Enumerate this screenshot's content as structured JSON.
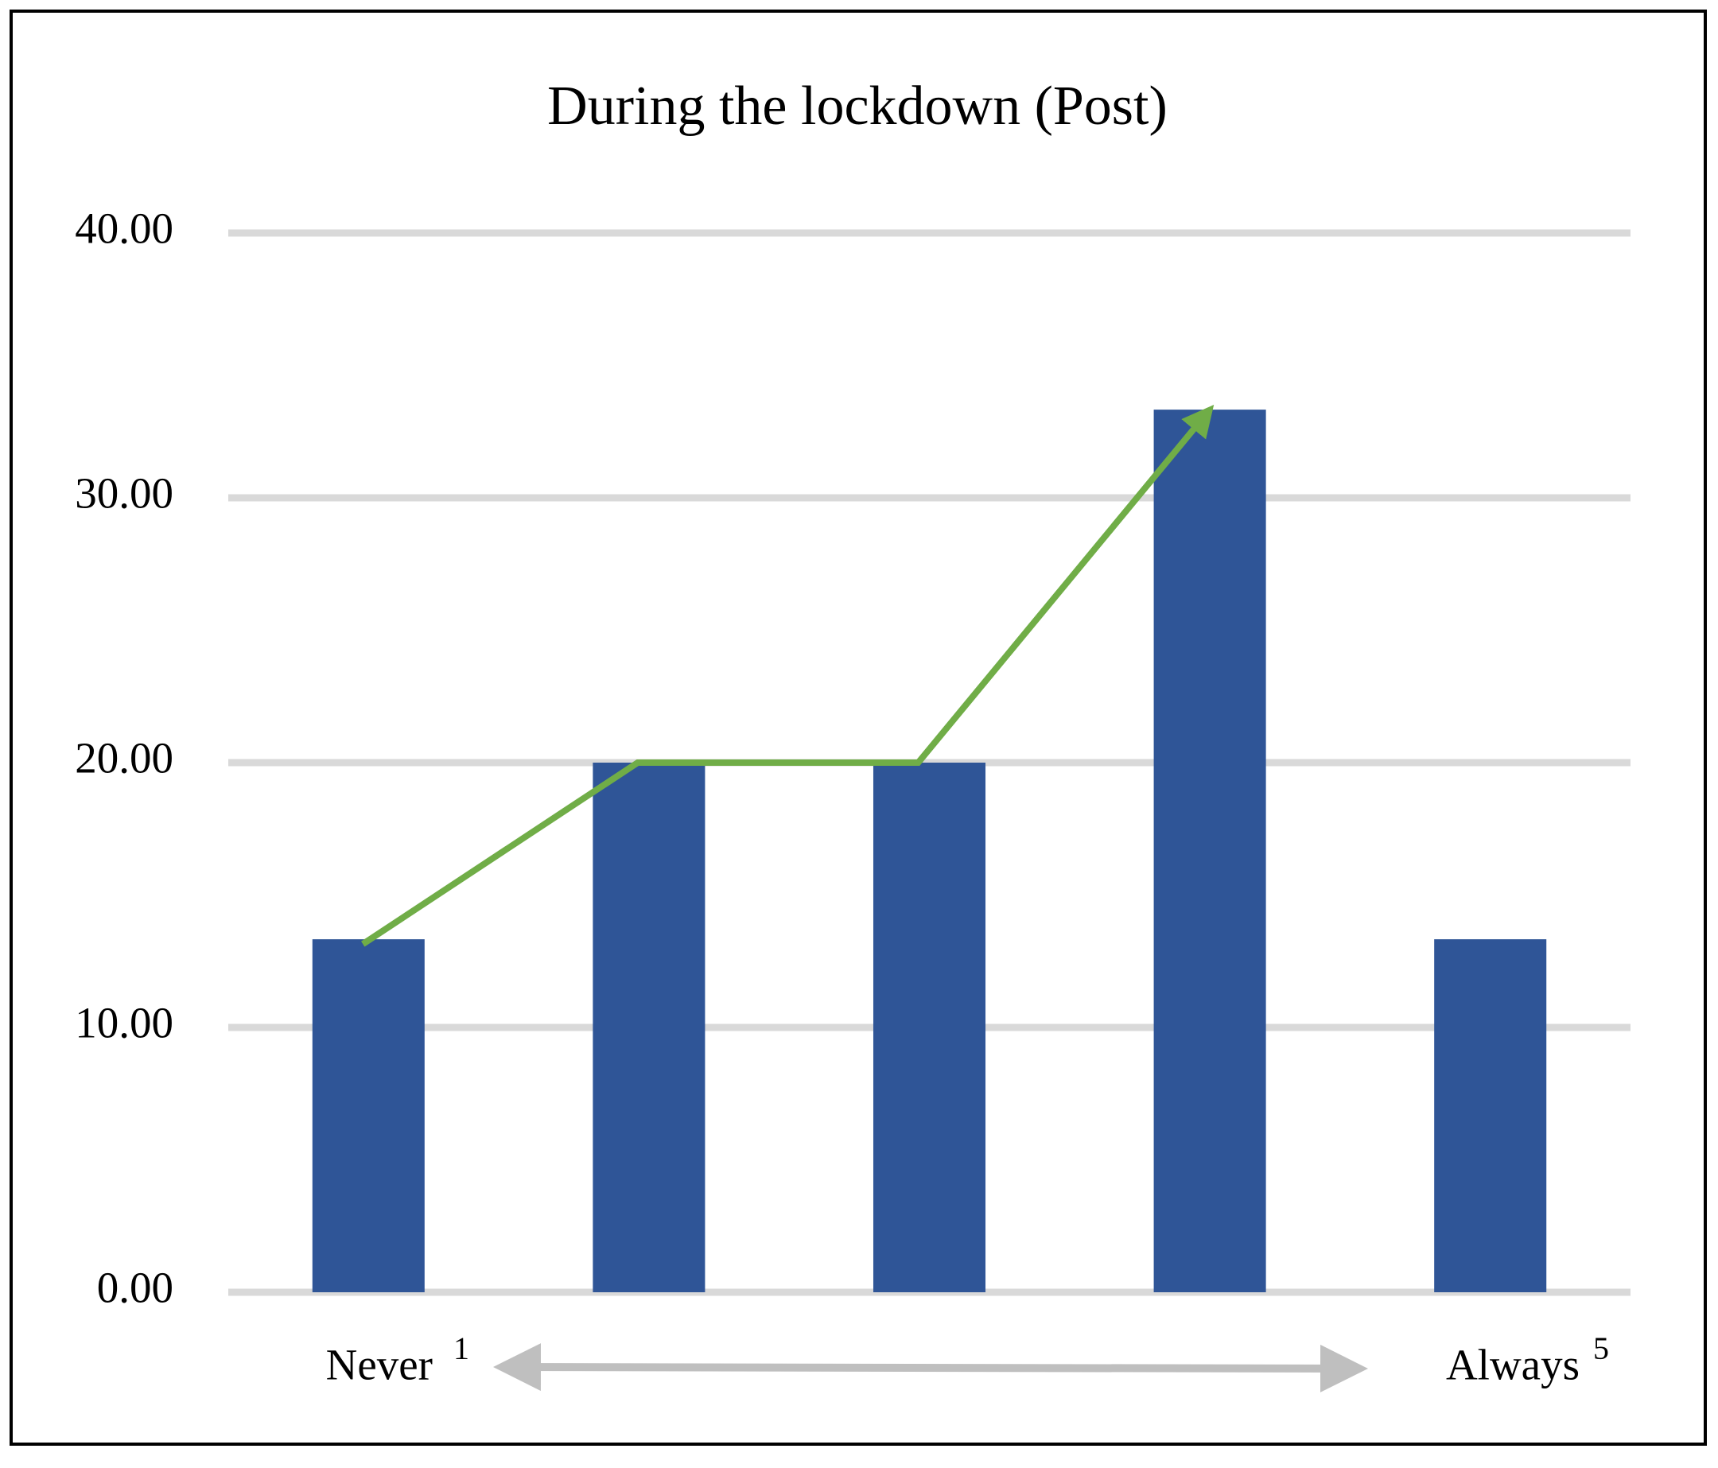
{
  "chart_data": {
    "type": "bar",
    "title": "During the lockdown (Post)",
    "categories": [
      "1",
      null,
      null,
      null,
      "5"
    ],
    "scale_ends": [
      "Never",
      "Always"
    ],
    "values": [
      13.33,
      20,
      20,
      33.33,
      13.33
    ],
    "color": "#2f5597",
    "trend_arrow": {
      "color": "#70ad47",
      "values": [
        13.33,
        20,
        20,
        33.33,
        null
      ]
    },
    "ylim": [
      0,
      40
    ],
    "yticks": [
      {
        "value": 0,
        "label": "0.00"
      },
      {
        "value": 10,
        "label": "10.00"
      },
      {
        "value": 20,
        "label": "20.00"
      },
      {
        "value": 30,
        "label": "30.00"
      },
      {
        "value": 40,
        "label": "40.00"
      }
    ],
    "grid": true
  }
}
